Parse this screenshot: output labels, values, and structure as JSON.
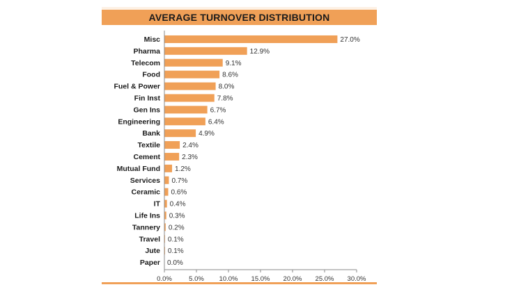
{
  "chart_data": {
    "type": "bar",
    "orientation": "horizontal",
    "title": "AVERAGE TURNOVER DISTRIBUTION",
    "categories": [
      "Misc",
      "Pharma",
      "Telecom",
      "Food",
      "Fuel & Power",
      "Fin Inst",
      "Gen Ins",
      "Engineering",
      "Bank",
      "Textile",
      "Cement",
      "Mutual Fund",
      "Services",
      "Ceramic",
      "IT",
      "Life Ins",
      "Tannery",
      "Travel",
      "Jute",
      "Paper"
    ],
    "values": [
      27.0,
      12.9,
      9.1,
      8.6,
      8.0,
      7.8,
      6.7,
      6.4,
      4.9,
      2.4,
      2.3,
      1.2,
      0.7,
      0.6,
      0.4,
      0.3,
      0.2,
      0.1,
      0.1,
      0.0
    ],
    "value_labels": [
      "27.0%",
      "12.9%",
      "9.1%",
      "8.6%",
      "8.0%",
      "7.8%",
      "6.7%",
      "6.4%",
      "4.9%",
      "2.4%",
      "2.3%",
      "1.2%",
      "0.7%",
      "0.6%",
      "0.4%",
      "0.3%",
      "0.2%",
      "0.1%",
      "0.1%",
      "0.0%"
    ],
    "x_ticks": [
      0,
      5,
      10,
      15,
      20,
      25,
      30
    ],
    "x_tick_labels": [
      "0.0%",
      "5.0%",
      "10.0%",
      "15.0%",
      "20.0%",
      "25.0%",
      "30.0%"
    ],
    "xlim": [
      0,
      30
    ],
    "xlabel": "",
    "ylabel": "",
    "grid": false,
    "legend": "none",
    "bar_color": "#f0a057",
    "header_color": "#f0a057",
    "panel_color": "#fdf1e5"
  }
}
